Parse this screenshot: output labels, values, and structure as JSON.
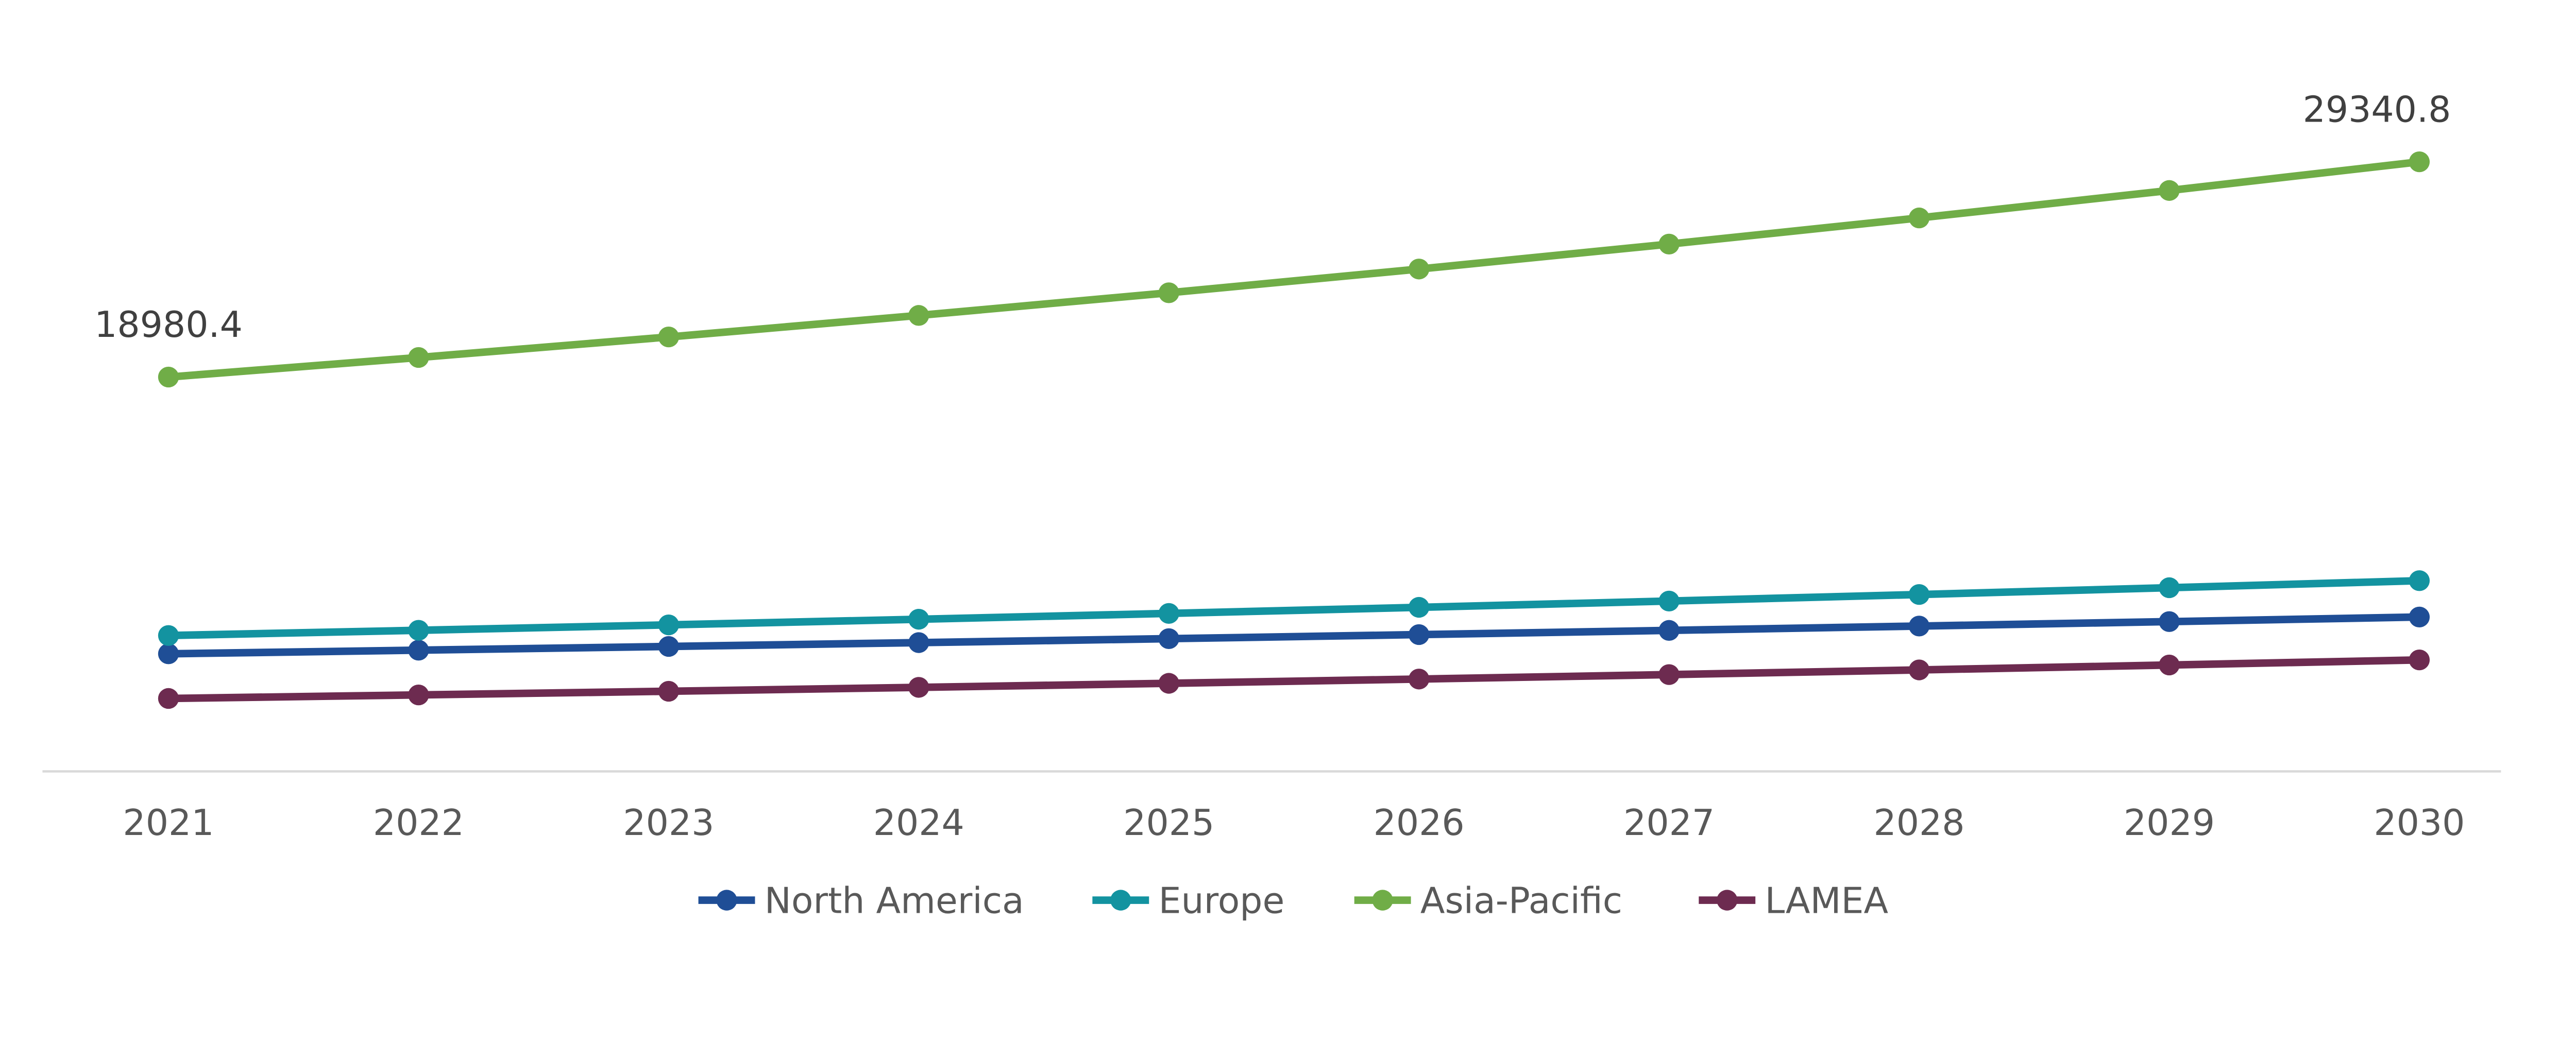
{
  "chart_data": {
    "type": "line",
    "title": "",
    "xlabel": "",
    "ylabel": "",
    "categories": [
      "2021",
      "2022",
      "2023",
      "2024",
      "2025",
      "2026",
      "2027",
      "2028",
      "2029",
      "2030"
    ],
    "ylim": [
      0,
      29340.8
    ],
    "grid": false,
    "legend_placement": "bottom",
    "series": [
      {
        "name": "North America",
        "color": "#1f4e96",
        "values": [
          5660,
          5834,
          6013,
          6198,
          6388,
          6584,
          6786,
          6995,
          7209,
          7430
        ]
      },
      {
        "name": "Europe",
        "color": "#1393a0",
        "values": [
          6540,
          6791,
          7052,
          7323,
          7604,
          7896,
          8199,
          8514,
          8841,
          9180
        ]
      },
      {
        "name": "Asia-Pacific",
        "color": "#70ad47",
        "values": [
          18980.4,
          19922,
          20911,
          21948,
          23037,
          24180,
          25380,
          26640,
          27961,
          29340.8
        ]
      },
      {
        "name": "LAMEA",
        "color": "#6d2b50",
        "values": [
          3510,
          3680,
          3857,
          4044,
          4239,
          4444,
          4659,
          4884,
          5120,
          5365
        ]
      }
    ],
    "annotations": [
      {
        "series": "Asia-Pacific",
        "category": "2021",
        "text": "18980.4"
      },
      {
        "series": "Asia-Pacific",
        "category": "2030",
        "text": "29340.8"
      }
    ]
  }
}
